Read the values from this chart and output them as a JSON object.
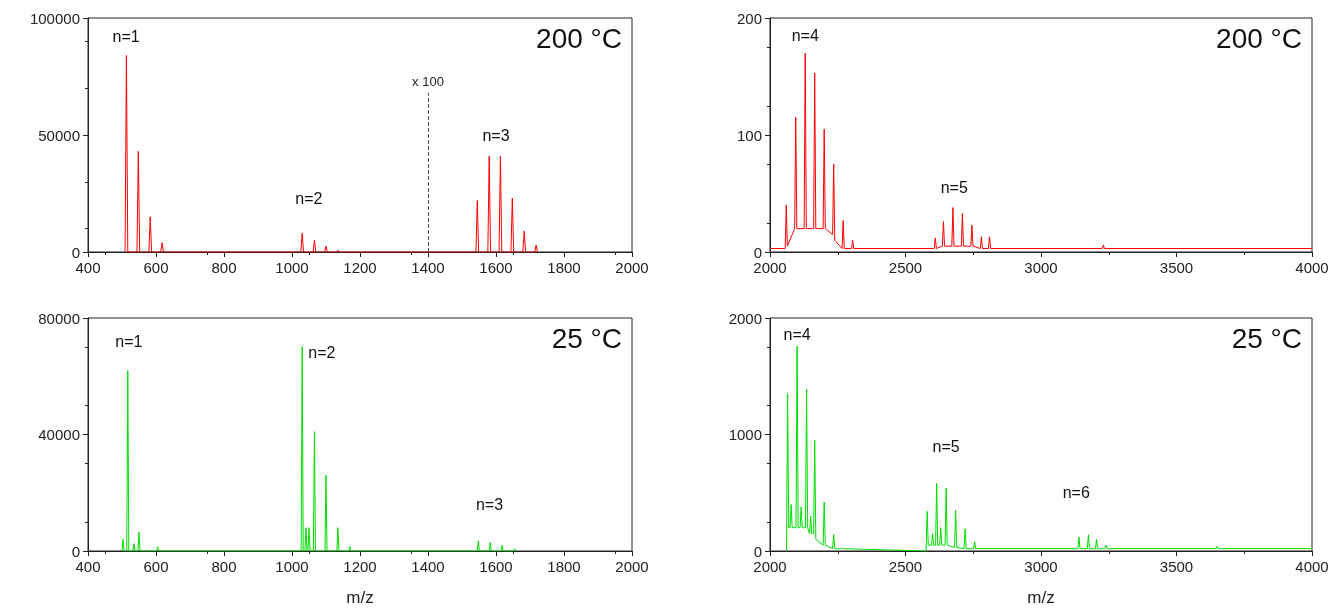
{
  "chart_data": [
    {
      "type": "line",
      "xlim": [
        400,
        2000
      ],
      "xticks": [
        400,
        600,
        800,
        1000,
        1200,
        1400,
        1600,
        1800,
        2000
      ],
      "ylim": [
        0,
        100000
      ],
      "yticks": [
        0,
        50000,
        100000
      ],
      "grid": false,
      "marker": "none",
      "line_style": "solid",
      "series": [
        {
          "color": "#ff0000",
          "x": [
            509,
            513,
            517,
            544,
            548,
            552,
            579,
            583,
            587,
            614,
            618,
            622,
            1026,
            1030,
            1034,
            1062,
            1066,
            1070,
            1096,
            1100,
            1104,
            1131,
            1135,
            1139,
            1400,
            1541,
            1545,
            1549,
            1576,
            1580,
            1584,
            1609,
            1613,
            1617,
            1644,
            1648,
            1652,
            1679,
            1683,
            1687,
            1714,
            1718,
            1722
          ],
          "values": [
            0,
            84000,
            0,
            0,
            43000,
            0,
            0,
            15000,
            0,
            0,
            4000,
            0,
            0,
            8000,
            0,
            0,
            5000,
            0,
            0,
            2500,
            0,
            0,
            800,
            0,
            0,
            0,
            22000,
            0,
            0,
            41000,
            0,
            0,
            41000,
            0,
            0,
            23000,
            0,
            0,
            9000,
            0,
            0,
            3000,
            0
          ]
        }
      ],
      "ref_lines": [
        {
          "axis": "x",
          "value": 1400,
          "label": "x 100",
          "color": "#555555",
          "line_style": "dashed"
        }
      ],
      "annotations": [
        "200 °C",
        "n=1",
        "n=2",
        "n=3"
      ]
    },
    {
      "type": "line",
      "xlim": [
        2000,
        4000
      ],
      "xticks": [
        2000,
        2500,
        3000,
        3500,
        4000
      ],
      "ylim": [
        0,
        200
      ],
      "yticks": [
        0,
        100,
        200
      ],
      "grid": false,
      "marker": "none",
      "line_style": "solid",
      "series": [
        {
          "color": "#ff0000",
          "x": [
            2000,
            2056,
            2060,
            2064,
            2091,
            2095,
            2099,
            2126,
            2130,
            2134,
            2161,
            2165,
            2169,
            2196,
            2200,
            2204,
            2231,
            2235,
            2239,
            2266,
            2270,
            2274,
            2301,
            2305,
            2309,
            2606,
            2610,
            2614,
            2636,
            2640,
            2644,
            2671,
            2675,
            2679,
            2706,
            2710,
            2714,
            2741,
            2745,
            2749,
            2776,
            2780,
            2784,
            2806,
            2810,
            2814,
            3226,
            3230,
            3234,
            4000
          ],
          "values": [
            3,
            3,
            40,
            5,
            20,
            115,
            20,
            20,
            170,
            20,
            20,
            153,
            20,
            20,
            105,
            20,
            15,
            75,
            10,
            3,
            27,
            3,
            3,
            10,
            3,
            3,
            12,
            3,
            5,
            26,
            5,
            5,
            38,
            5,
            5,
            33,
            5,
            5,
            23,
            5,
            3,
            13,
            3,
            3,
            13,
            3,
            3,
            6,
            3,
            3
          ]
        }
      ],
      "annotations": [
        "200 °C",
        "n=4",
        "n=5"
      ]
    },
    {
      "type": "line",
      "xlabel": "m/z",
      "xlim": [
        400,
        2000
      ],
      "xticks": [
        400,
        600,
        800,
        1000,
        1200,
        1400,
        1600,
        1800,
        2000
      ],
      "ylim": [
        0,
        80000
      ],
      "yticks": [
        0,
        40000,
        80000
      ],
      "grid": false,
      "marker": "none",
      "line_style": "solid",
      "series": [
        {
          "color": "#00dd00",
          "x": [
            500,
            503,
            506,
            514,
            517,
            520,
            532,
            535,
            538,
            547,
            550,
            553,
            602,
            605,
            608,
            1027,
            1030,
            1033,
            1038,
            1041,
            1044,
            1047,
            1050,
            1053,
            1063,
            1066,
            1069,
            1097,
            1100,
            1103,
            1132,
            1135,
            1138,
            1167,
            1170,
            1173,
            1545,
            1548,
            1551,
            1580,
            1583,
            1586,
            1615,
            1618,
            1621,
            1652,
            1655,
            1658
          ],
          "values": [
            0,
            4000,
            0,
            0,
            62000,
            0,
            0,
            2500,
            0,
            0,
            6500,
            0,
            0,
            1500,
            0,
            0,
            70000,
            0,
            0,
            8000,
            0,
            0,
            8000,
            0,
            0,
            41000,
            0,
            0,
            26000,
            0,
            0,
            8000,
            0,
            0,
            1500,
            0,
            0,
            3500,
            0,
            0,
            3000,
            0,
            0,
            2000,
            0,
            0,
            800,
            0
          ]
        }
      ],
      "annotations": [
        "25 °C",
        "n=1",
        "n=2",
        "n=3"
      ]
    },
    {
      "type": "line",
      "xlabel": "m/z",
      "xlim": [
        2000,
        4000
      ],
      "xticks": [
        2000,
        2500,
        3000,
        3500,
        4000
      ],
      "ylim": [
        0,
        2000
      ],
      "yticks": [
        0,
        1000,
        2000
      ],
      "grid": false,
      "marker": "none",
      "line_style": "solid",
      "series": [
        {
          "color": "#00dd00",
          "x": [
            2061,
            2065,
            2069,
            2074,
            2078,
            2082,
            2096,
            2100,
            2104,
            2111,
            2115,
            2119,
            2131,
            2135,
            2139,
            2146,
            2150,
            2154,
            2161,
            2165,
            2169,
            2196,
            2200,
            2204,
            2231,
            2235,
            2239,
            2261,
            2265,
            2269,
            2576,
            2580,
            2584,
            2596,
            2600,
            2604,
            2611,
            2615,
            2619,
            2626,
            2630,
            2634,
            2646,
            2650,
            2654,
            2681,
            2685,
            2689,
            2716,
            2720,
            2724,
            2751,
            2755,
            2759,
            3136,
            3140,
            3144,
            3171,
            3175,
            3179,
            3201,
            3205,
            3209,
            3236,
            3240,
            3244,
            3646,
            3650,
            3654,
            4000
          ],
          "values": [
            0,
            1350,
            200,
            200,
            400,
            200,
            200,
            1760,
            200,
            200,
            380,
            200,
            200,
            1390,
            200,
            150,
            300,
            150,
            150,
            950,
            100,
            50,
            420,
            50,
            20,
            140,
            20,
            20,
            30,
            20,
            0,
            340,
            50,
            50,
            150,
            50,
            50,
            580,
            50,
            50,
            200,
            50,
            50,
            540,
            50,
            30,
            350,
            30,
            20,
            190,
            20,
            20,
            80,
            20,
            20,
            120,
            20,
            20,
            140,
            20,
            20,
            100,
            20,
            20,
            50,
            20,
            20,
            40,
            20,
            20
          ]
        }
      ],
      "annotations": [
        "25 °C",
        "n=4",
        "n=5",
        "n=6"
      ]
    }
  ]
}
